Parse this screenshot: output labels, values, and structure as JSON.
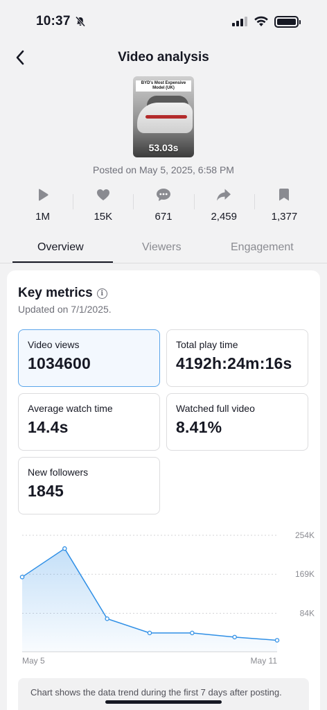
{
  "status_bar": {
    "time": "10:37"
  },
  "header": {
    "title": "Video analysis",
    "back_icon": "chevron-left-icon"
  },
  "video": {
    "thumbnail_caption": "BYD's Most Expensive Model (UK)",
    "duration": "53.03s",
    "posted_on": "Posted on May 5, 2025, 6:58 PM"
  },
  "stats": [
    {
      "icon": "play-icon",
      "value": "1M"
    },
    {
      "icon": "heart-icon",
      "value": "15K"
    },
    {
      "icon": "comment-icon",
      "value": "671"
    },
    {
      "icon": "share-icon",
      "value": "2,459"
    },
    {
      "icon": "bookmark-icon",
      "value": "1,377"
    }
  ],
  "tabs": [
    {
      "label": "Overview",
      "active": true
    },
    {
      "label": "Viewers",
      "active": false
    },
    {
      "label": "Engagement",
      "active": false
    }
  ],
  "key_metrics": {
    "title": "Key metrics",
    "updated": "Updated on 7/1/2025.",
    "items": [
      {
        "label": "Video views",
        "value": "1034600",
        "selected": true
      },
      {
        "label": "Total play time",
        "value": "4192h:24m:16s",
        "selected": false
      },
      {
        "label": "Average watch time",
        "value": "14.4s",
        "selected": false
      },
      {
        "label": "Watched full video",
        "value": "8.41%",
        "selected": false
      },
      {
        "label": "New followers",
        "value": "1845",
        "selected": false
      }
    ]
  },
  "chart_data": {
    "type": "area",
    "x": [
      "May 5",
      "May 6",
      "May 7",
      "May 8",
      "May 9",
      "May 10",
      "May 11"
    ],
    "x_tick_labels": [
      "May 5",
      "May 11"
    ],
    "values": [
      163000,
      225000,
      72000,
      41000,
      41000,
      32000,
      25000
    ],
    "y_ticks": [
      84000,
      169000,
      254000
    ],
    "y_tick_labels": [
      "84K",
      "169K",
      "254K"
    ],
    "ylim": [
      0,
      254000
    ],
    "color": "#2f8fe6",
    "grid": "dotted horizontal",
    "y_axis_position": "right"
  },
  "chart_note": "Chart shows the data trend during the first 7 days after posting."
}
